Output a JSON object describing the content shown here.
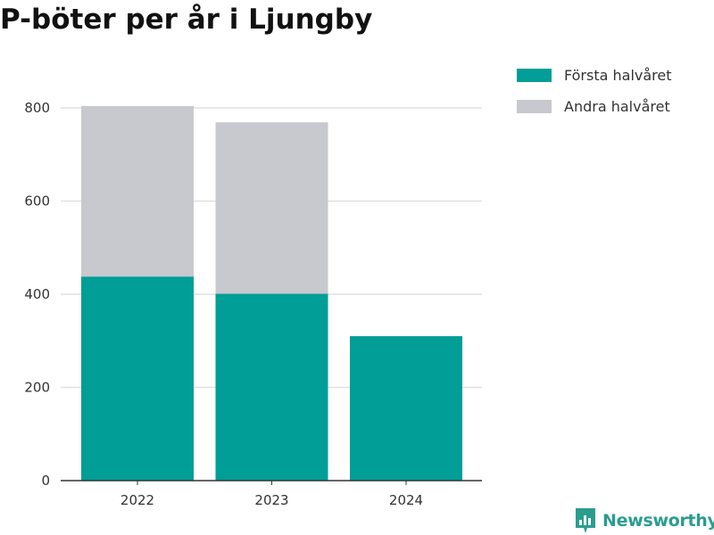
{
  "colors": {
    "first_half": "#009e96",
    "second_half": "#c8c8cf",
    "grid": "#e1e1e1",
    "axis": "#333333",
    "brand": "#2a9d8f"
  },
  "brand": {
    "name": "Newsworthy",
    "icon": "newsworthy-logo-icon"
  },
  "chart_data": {
    "type": "bar",
    "stacked": true,
    "title": "P-böter per år i Ljungby",
    "xlabel": "",
    "ylabel": "",
    "categories": [
      "2022",
      "2023",
      "2024"
    ],
    "series": [
      {
        "name": "Första halvåret",
        "values": [
          438,
          401,
          310
        ]
      },
      {
        "name": "Andra halvåret",
        "values": [
          366,
          368,
          0
        ]
      }
    ],
    "ylim": [
      0,
      800
    ],
    "yticks": [
      0,
      200,
      400,
      600,
      800
    ],
    "grid": true,
    "legend_position": "top-right"
  }
}
